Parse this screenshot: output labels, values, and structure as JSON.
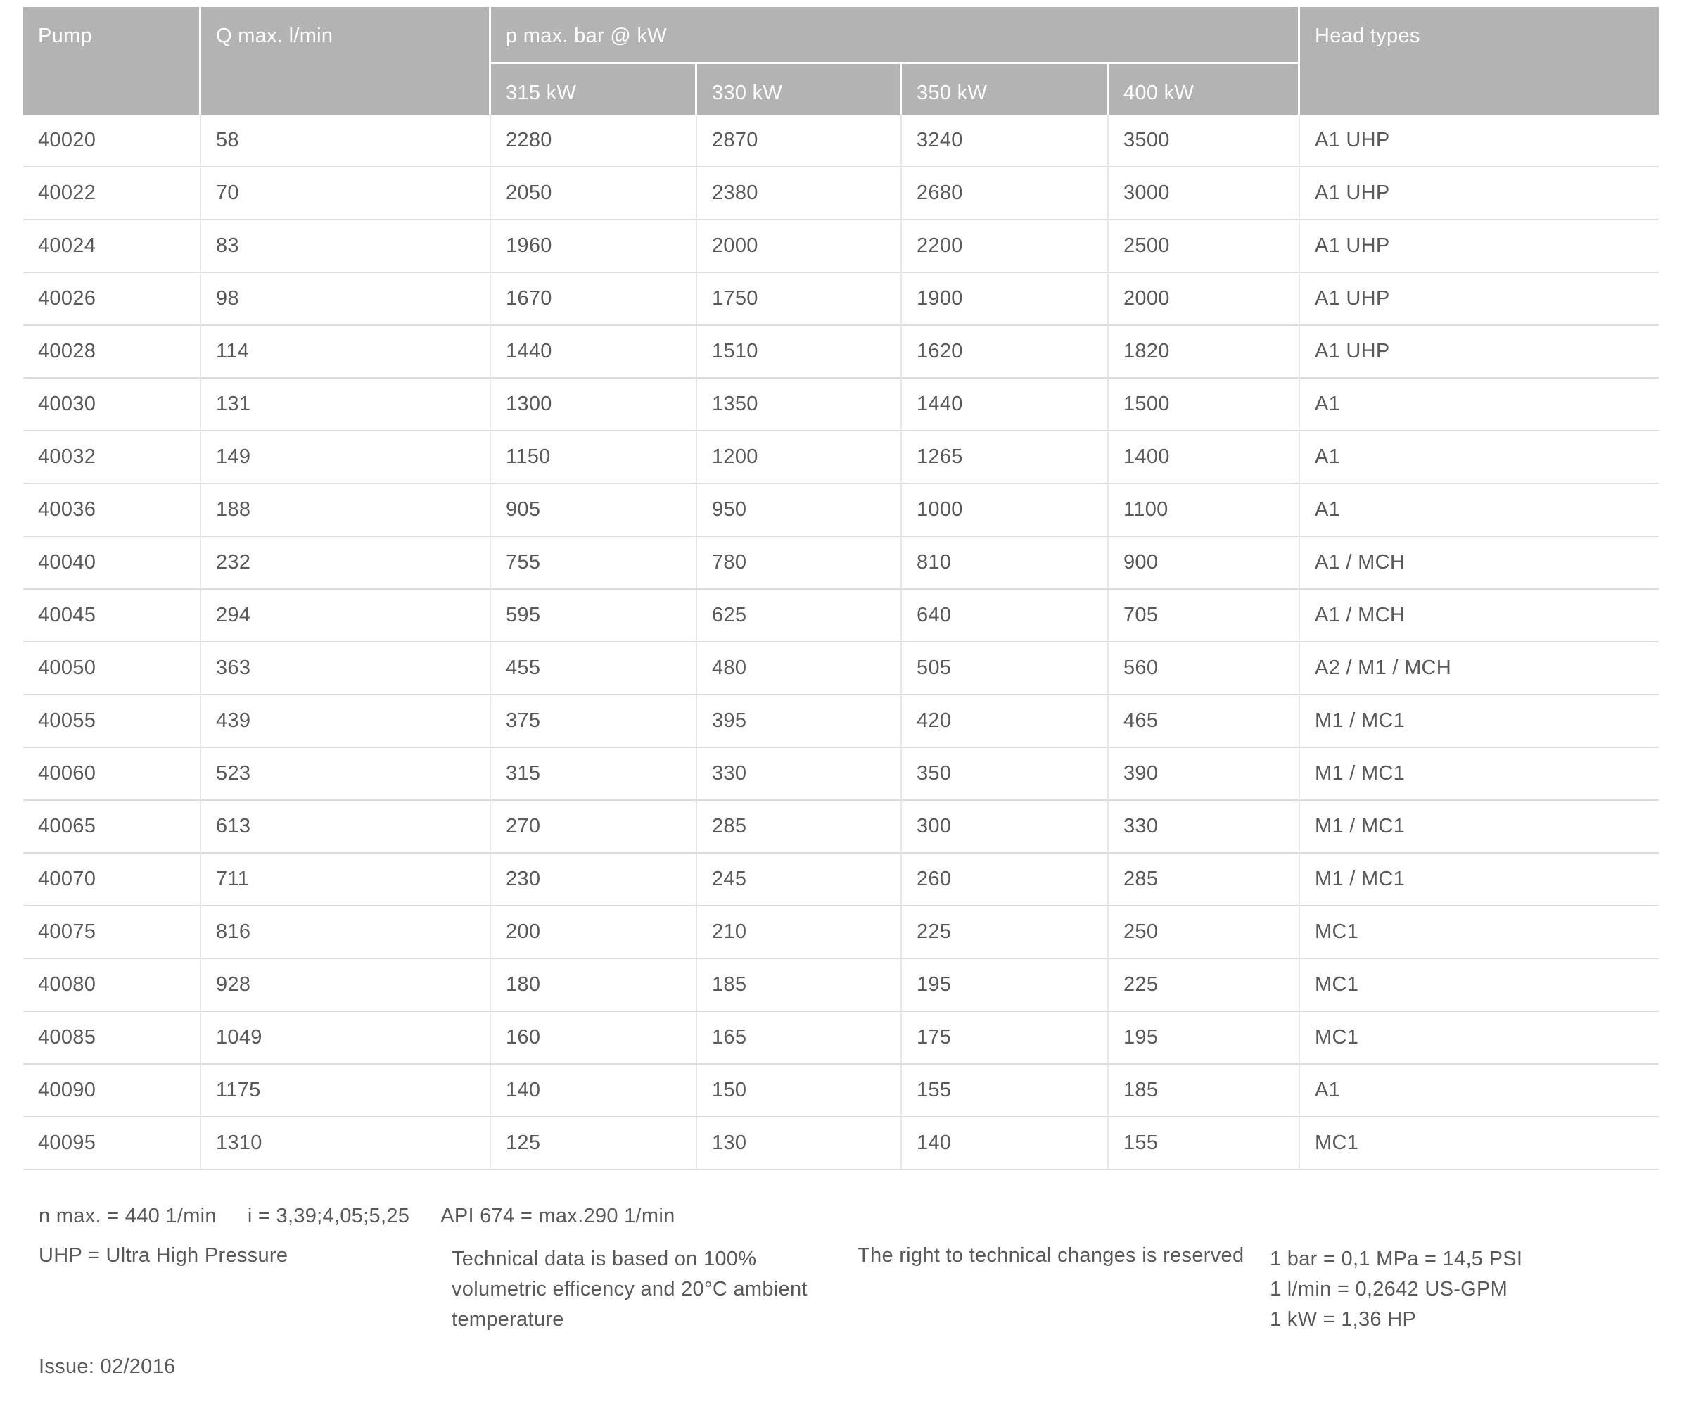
{
  "table": {
    "headers": {
      "pump": "Pump",
      "q_max": "Q max. l/min",
      "p_max_group": "p max. bar @ kW",
      "kw_columns": [
        "315 kW",
        "330 kW",
        "350 kW",
        "400 kW"
      ],
      "head_types": "Head types"
    },
    "rows": [
      [
        "40020",
        "58",
        "2280",
        "2870",
        "3240",
        "3500",
        "A1 UHP"
      ],
      [
        "40022",
        "70",
        "2050",
        "2380",
        "2680",
        "3000",
        "A1 UHP"
      ],
      [
        "40024",
        "83",
        "1960",
        "2000",
        "2200",
        "2500",
        "A1 UHP"
      ],
      [
        "40026",
        "98",
        "1670",
        "1750",
        "1900",
        "2000",
        "A1 UHP"
      ],
      [
        "40028",
        "114",
        "1440",
        "1510",
        "1620",
        "1820",
        "A1 UHP"
      ],
      [
        "40030",
        "131",
        "1300",
        "1350",
        "1440",
        "1500",
        "A1"
      ],
      [
        "40032",
        "149",
        "1150",
        "1200",
        "1265",
        "1400",
        "A1"
      ],
      [
        "40036",
        "188",
        "905",
        "950",
        "1000",
        "1100",
        "A1"
      ],
      [
        "40040",
        "232",
        "755",
        "780",
        "810",
        "900",
        "A1 / MCH"
      ],
      [
        "40045",
        "294",
        "595",
        "625",
        "640",
        "705",
        "A1 / MCH"
      ],
      [
        "40050",
        "363",
        "455",
        "480",
        "505",
        "560",
        "A2 / M1 / MCH"
      ],
      [
        "40055",
        "439",
        "375",
        "395",
        "420",
        "465",
        "M1 / MC1"
      ],
      [
        "40060",
        "523",
        "315",
        "330",
        "350",
        "390",
        "M1 / MC1"
      ],
      [
        "40065",
        "613",
        "270",
        "285",
        "300",
        "330",
        "M1 / MC1"
      ],
      [
        "40070",
        "711",
        "230",
        "245",
        "260",
        "285",
        "M1 / MC1"
      ],
      [
        "40075",
        "816",
        "200",
        "210",
        "225",
        "250",
        "MC1"
      ],
      [
        "40080",
        "928",
        "180",
        "185",
        "195",
        "225",
        "MC1"
      ],
      [
        "40085",
        "1049",
        "160",
        "165",
        "175",
        "195",
        "MC1"
      ],
      [
        "40090",
        "1175",
        "140",
        "150",
        "155",
        "185",
        "A1"
      ],
      [
        "40095",
        "1310",
        "125",
        "130",
        "140",
        "155",
        "MC1"
      ]
    ]
  },
  "footnotes": {
    "line1": [
      "n max. = 440 1/min",
      "i = 3,39;4,05;5,25",
      "API 674 = max.290 1/min"
    ],
    "uhp": "UHP = Ultra High Pressure",
    "tech_lines": [
      "Technical data is based on 100%",
      "volumetric efficency and 20°C ambient",
      "temperature"
    ],
    "rights": "The right to technical changes is reserved",
    "conversions": [
      "1 bar = 0,1 MPa = 14,5 PSI",
      "1 l/min = 0,2642 US-GPM",
      "1 kW = 1,36 HP"
    ],
    "issue": "Issue: 02/2016"
  },
  "colors": {
    "header_bg": "#b3b3b3",
    "header_text": "#fdfdfd",
    "body_text": "#595959",
    "row_divider": "#dcdcdc",
    "column_divider": "#e8e8e8"
  }
}
